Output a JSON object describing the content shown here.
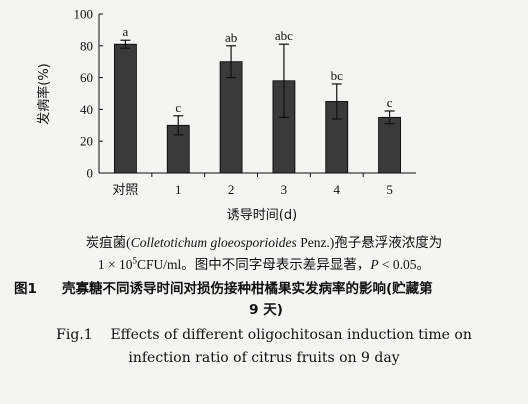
{
  "chart_data": {
    "type": "bar",
    "categories": [
      "对照",
      "1",
      "2",
      "3",
      "4",
      "5"
    ],
    "values": [
      81,
      30,
      70,
      58,
      45,
      35
    ],
    "errors": [
      2.5,
      6,
      10,
      23,
      11,
      4
    ],
    "significance": [
      "a",
      "c",
      "ab",
      "abc",
      "bc",
      "c"
    ],
    "xlabel": "诱导时间(d)",
    "ylabel": "发病率(%)",
    "ylim": [
      0,
      100
    ],
    "yticks": [
      "0",
      "20",
      "40",
      "60",
      "80",
      "100"
    ],
    "grid": false,
    "bar_color": "#3a3a3a"
  },
  "caption": {
    "note_line1_prefix": "炭疽菌(",
    "note_line1_species": "Colletotichum gloeosporioides",
    "note_line1_suffix": " Penz.)孢子悬浮液浓度为",
    "note_line2_a": "1 × 10",
    "note_line2_sup": "5",
    "note_line2_b": "CFU/ml。图中不同字母表示差异显著，",
    "note_line2_p": "P",
    "note_line2_c": " < 0.05。",
    "zh_figno": "图1",
    "zh_title_line1": "壳寡糖不同诱导时间对损伤接种柑橘果实发病率的影响(贮藏第",
    "zh_title_line2": "9 天)",
    "en_line1": "Fig.1    Effects of different oligochitosan induction time on",
    "en_line2": "infection ratio of citrus fruits on 9 day"
  }
}
